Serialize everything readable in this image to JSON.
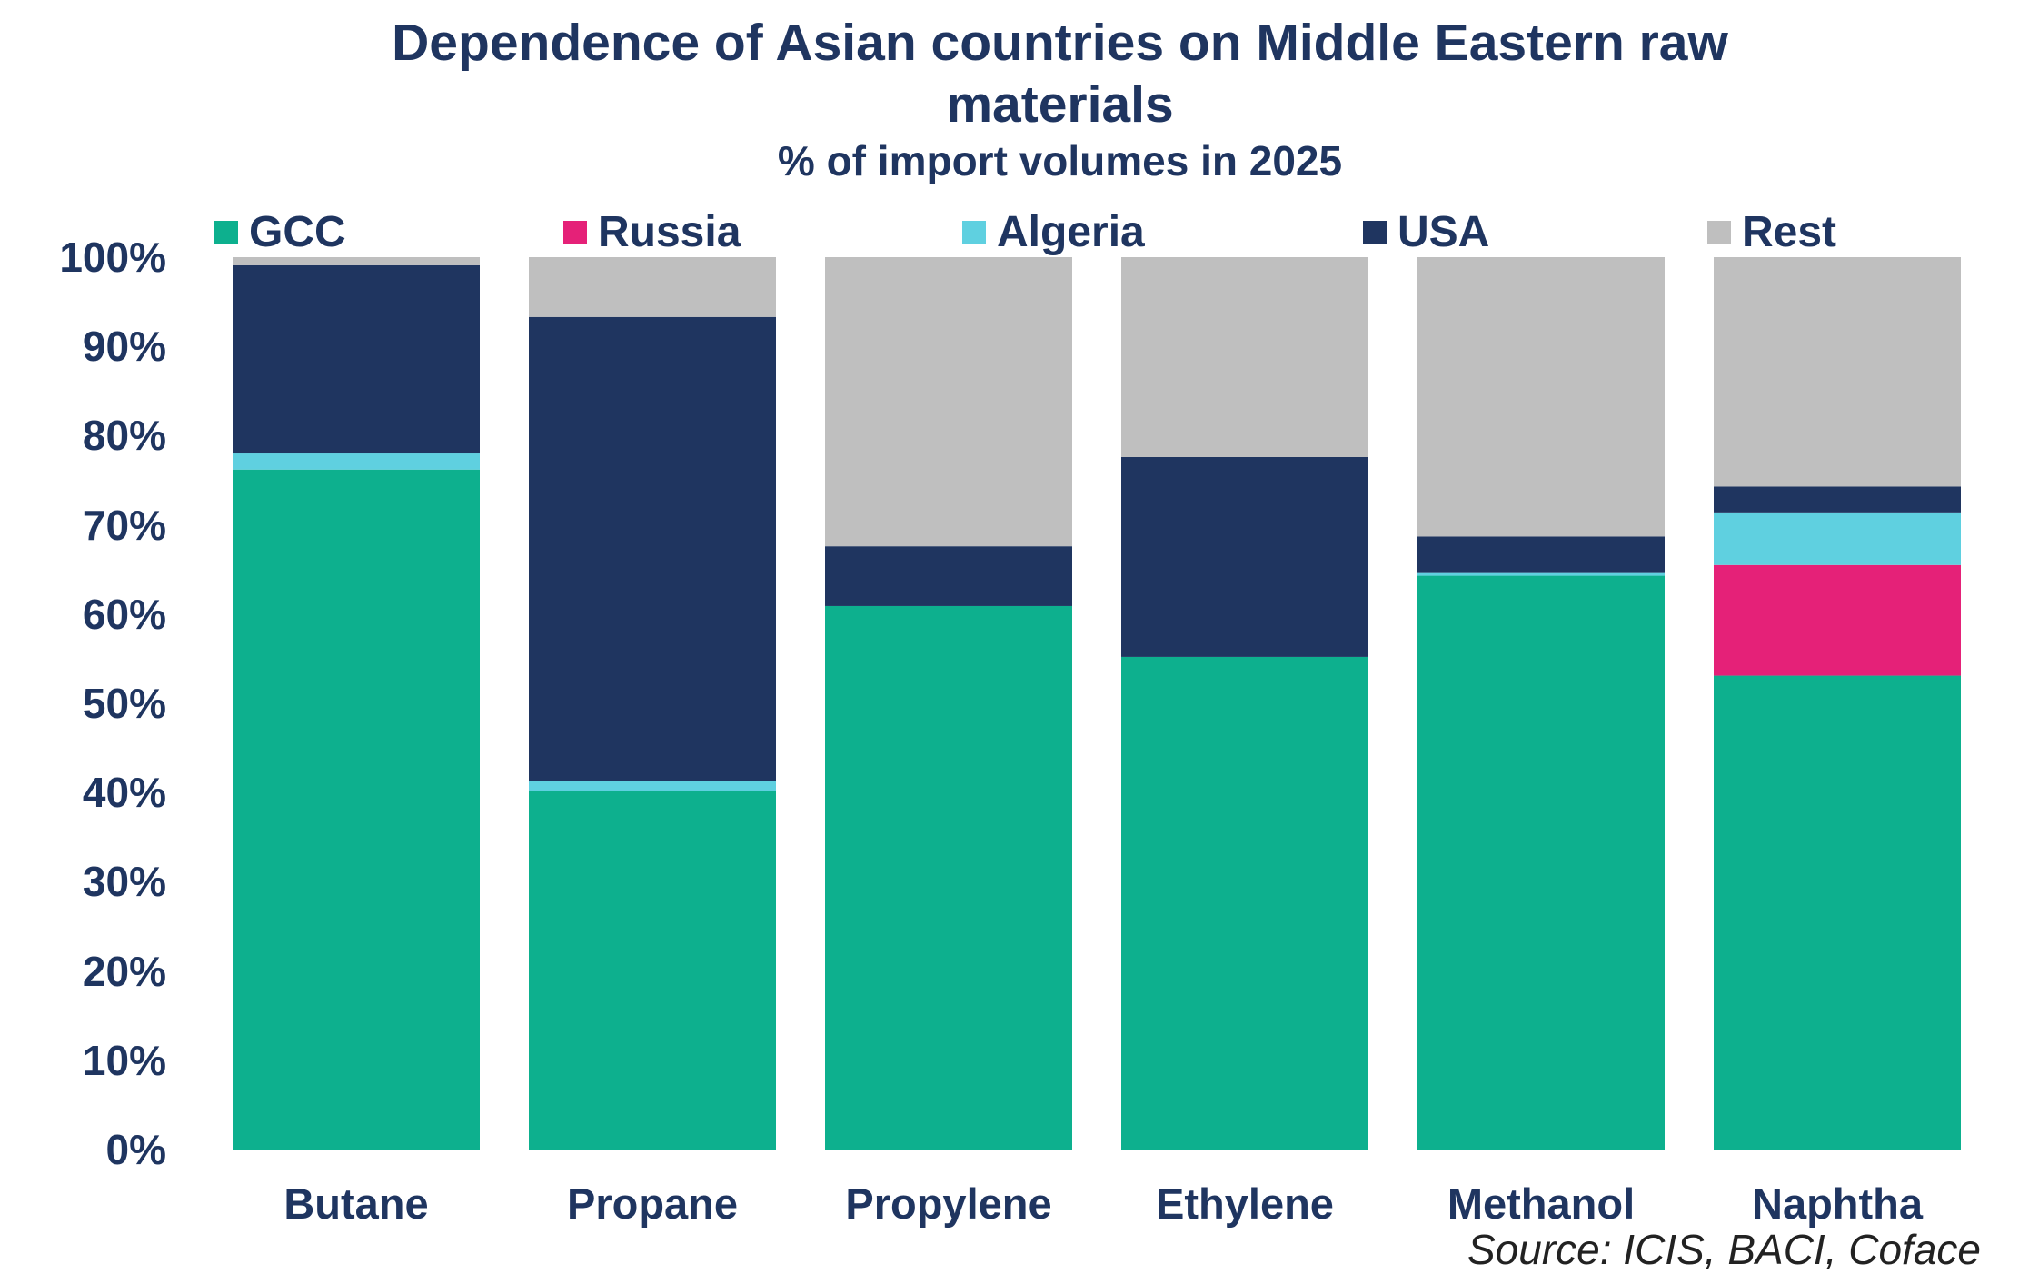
{
  "chart_data": {
    "type": "bar",
    "stacked": true,
    "title": "Dependence of Asian countries on Middle Eastern raw materials",
    "title_lines": [
      "Dependence of Asian countries on Middle Eastern raw",
      "materials"
    ],
    "subtitle": "% of import volumes in 2025",
    "source": "Source: ICIS, BACI, Coface",
    "categories": [
      "Butane",
      "Propane",
      "Propylene",
      "Ethylene",
      "Methanol",
      "Naphtha"
    ],
    "ylim": [
      0,
      100
    ],
    "yticks": [
      "0%",
      "10%",
      "20%",
      "30%",
      "40%",
      "50%",
      "60%",
      "70%",
      "80%",
      "90%",
      "100%"
    ],
    "legend_position": "top",
    "grid": false,
    "series": [
      {
        "name": "GCC",
        "color": "#0db08e",
        "values": [
          76.2,
          40.2,
          60.9,
          55.2,
          64.3,
          53.1
        ]
      },
      {
        "name": "Russia",
        "color": "#e52178",
        "values": [
          0,
          0,
          0,
          0,
          0,
          12.4
        ]
      },
      {
        "name": "Algeria",
        "color": "#5fd0e0",
        "values": [
          1.8,
          1.1,
          0,
          0,
          0.3,
          5.9
        ]
      },
      {
        "name": "USA",
        "color": "#1f3560",
        "values": [
          21.1,
          52.0,
          6.7,
          22.4,
          4.1,
          2.9
        ]
      },
      {
        "name": "Rest",
        "color": "#bfbfbf",
        "values": [
          0.9,
          6.7,
          32.4,
          22.4,
          31.3,
          25.7
        ]
      }
    ]
  }
}
